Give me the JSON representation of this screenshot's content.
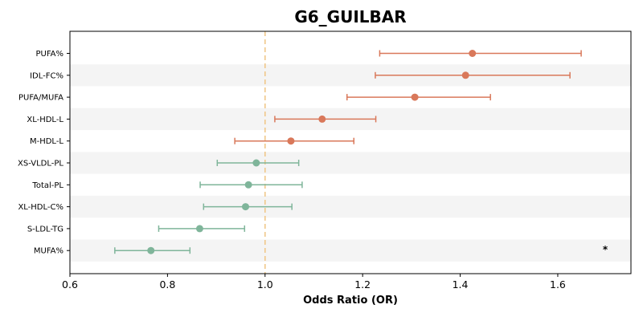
{
  "chart_data": {
    "type": "forest",
    "title": "G6_GUILBAR",
    "xlabel": "Odds Ratio (OR)",
    "xlim": [
      0.6,
      1.75
    ],
    "xticks": [
      0.6,
      0.8,
      1.0,
      1.2,
      1.4,
      1.6
    ],
    "xtick_labels": [
      "0.6",
      "0.8",
      "1.0",
      "1.2",
      "1.4",
      "1.6"
    ],
    "reference_line": 1.0,
    "reference_line_style": "dashed",
    "row_striping": true,
    "colors": {
      "increased": "#d9785a",
      "decreased": "#7fb59a",
      "reference": "#f0c88a",
      "stripe": "#f4f4f4"
    },
    "rows": [
      {
        "label": "PUFA%",
        "or": 1.425,
        "lo": 1.235,
        "hi": 1.648,
        "direction": "increased",
        "annotation": ""
      },
      {
        "label": "IDL-FC%",
        "or": 1.411,
        "lo": 1.226,
        "hi": 1.625,
        "direction": "increased",
        "annotation": ""
      },
      {
        "label": "PUFA/MUFA",
        "or": 1.307,
        "lo": 1.168,
        "hi": 1.462,
        "direction": "increased",
        "annotation": ""
      },
      {
        "label": "XL-HDL-L",
        "or": 1.117,
        "lo": 1.02,
        "hi": 1.227,
        "direction": "increased",
        "annotation": ""
      },
      {
        "label": "M-HDL-L",
        "or": 1.053,
        "lo": 0.938,
        "hi": 1.182,
        "direction": "increased",
        "annotation": ""
      },
      {
        "label": "XS-VLDL-PL",
        "or": 0.982,
        "lo": 0.902,
        "hi": 1.069,
        "direction": "decreased",
        "annotation": ""
      },
      {
        "label": "Total-PL",
        "or": 0.966,
        "lo": 0.867,
        "hi": 1.076,
        "direction": "decreased",
        "annotation": ""
      },
      {
        "label": "XL-HDL-C%",
        "or": 0.96,
        "lo": 0.874,
        "hi": 1.055,
        "direction": "decreased",
        "annotation": ""
      },
      {
        "label": "S-LDL-TG",
        "or": 0.866,
        "lo": 0.782,
        "hi": 0.958,
        "direction": "decreased",
        "annotation": ""
      },
      {
        "label": "MUFA%",
        "or": 0.766,
        "lo": 0.692,
        "hi": 0.846,
        "direction": "decreased",
        "annotation": "*"
      }
    ]
  }
}
